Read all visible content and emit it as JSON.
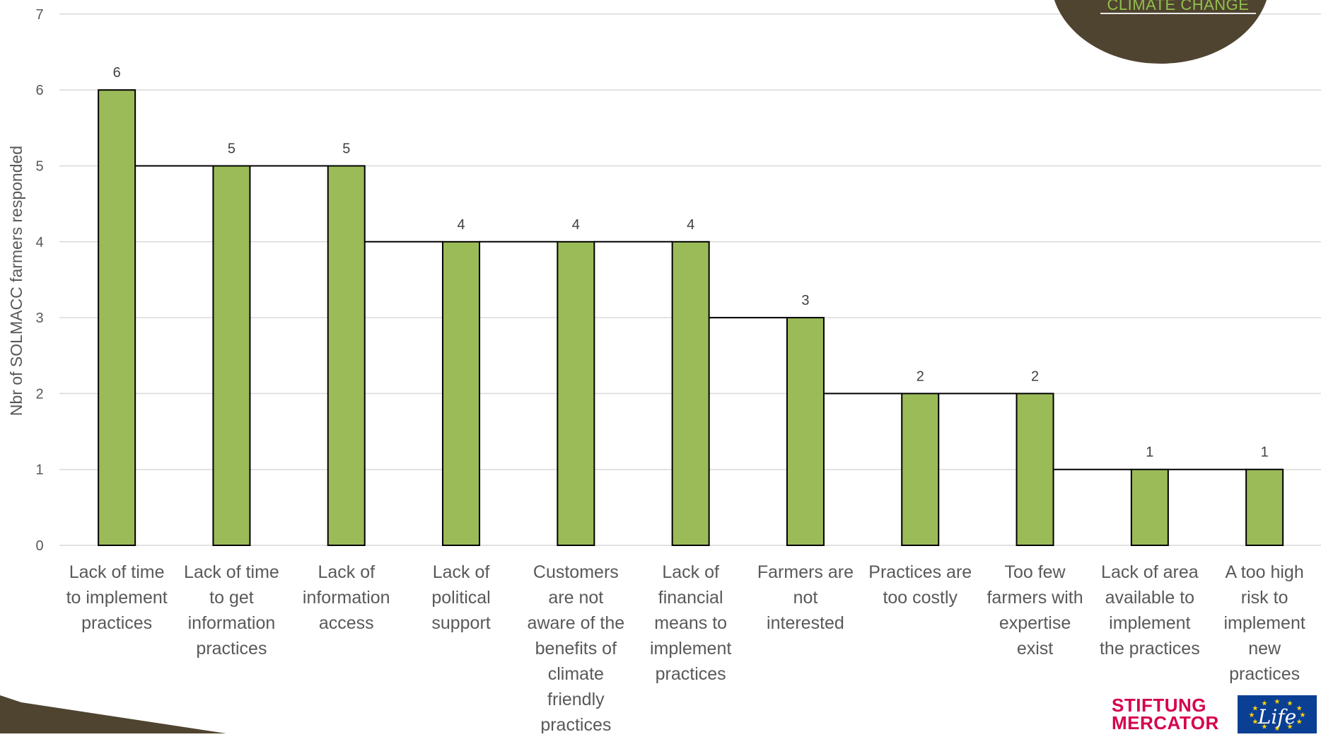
{
  "chart_data": {
    "type": "bar",
    "ylabel": "Nbr of SOLMACC farmers responded",
    "xlabel": "",
    "ylim": [
      0,
      7
    ],
    "yticks": [
      "0",
      "1",
      "2",
      "3",
      "4",
      "5",
      "6",
      "7"
    ],
    "grid": true,
    "categories": [
      [
        "Lack of time",
        "to implement",
        "practices"
      ],
      [
        "Lack of time",
        "to get",
        "information",
        "practices"
      ],
      [
        "Lack of",
        "information",
        "access"
      ],
      [
        "Lack  of",
        "political",
        "support"
      ],
      [
        "Customers",
        "are not",
        "aware of the",
        "benefits of",
        "climate",
        "friendly",
        "practices"
      ],
      [
        "Lack of",
        "financial",
        "means to",
        "implement",
        "practices"
      ],
      [
        "Farmers are",
        "not",
        "interested"
      ],
      [
        "Practices are",
        "too costly"
      ],
      [
        "Too few",
        "farmers with",
        "expertise",
        "exist"
      ],
      [
        "Lack of area",
        "available to",
        "implement",
        "the practices"
      ],
      [
        "A too high",
        "risk to",
        "implement",
        "new",
        "practices"
      ]
    ],
    "values": [
      6,
      5,
      5,
      4,
      4,
      4,
      3,
      2,
      2,
      1,
      1
    ],
    "data_labels": [
      "6",
      "5",
      "5",
      "4",
      "4",
      "4",
      "3",
      "2",
      "2",
      "1",
      "1"
    ],
    "colors": {
      "bar": "#9bbb59",
      "bar_edge": "#000000",
      "grid": "#d9d9d9",
      "step": "#000000"
    }
  },
  "decor": {
    "circle_text": "CLIMATE CHANGE",
    "logo_mercator": [
      "STIFTUNG",
      "MERCATOR"
    ],
    "logo_life": "Life",
    "colors": {
      "brown": "#4f4430",
      "green": "#92c04c",
      "mercator": "#d6004e",
      "eu_blue": "#0a3f94",
      "eu_star": "#ffd200"
    }
  }
}
